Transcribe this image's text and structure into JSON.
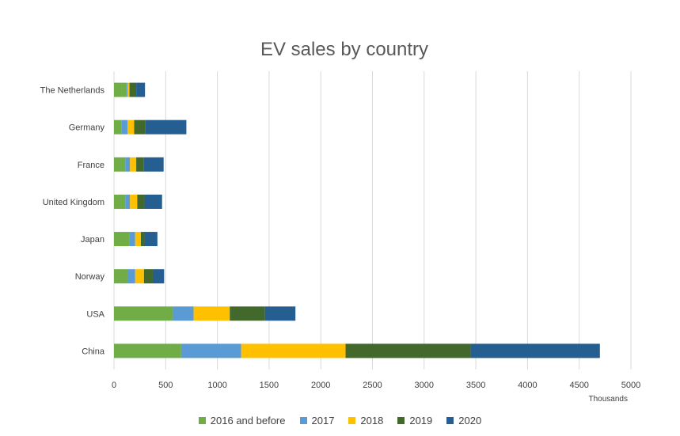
{
  "chart_data": {
    "type": "bar",
    "orientation": "horizontal",
    "stacked": true,
    "title": "EV sales by country",
    "xlabel": "",
    "ylabel": "",
    "x_unit_label": "Thousands",
    "xlim": [
      0,
      5000
    ],
    "xticks": [
      0,
      500,
      1000,
      1500,
      2000,
      2500,
      3000,
      3500,
      4000,
      4500,
      5000
    ],
    "grid": true,
    "legend_position": "bottom",
    "categories": [
      "The Netherlands",
      "Germany",
      "France",
      "United Kingdom",
      "Japan",
      "Norway",
      "USA",
      "China"
    ],
    "series": [
      {
        "name": "2016 and before",
        "color": "#70ad47",
        "values": [
          120,
          75,
          110,
          110,
          150,
          130,
          570,
          650
        ]
      },
      {
        "name": "2017",
        "color": "#5b9bd5",
        "values": [
          10,
          55,
          45,
          45,
          55,
          75,
          200,
          580
        ]
      },
      {
        "name": "2018",
        "color": "#ffc000",
        "values": [
          20,
          65,
          60,
          70,
          55,
          85,
          350,
          1010
        ]
      },
      {
        "name": "2019",
        "color": "#43682b",
        "values": [
          65,
          110,
          70,
          70,
          35,
          85,
          340,
          1210
        ]
      },
      {
        "name": "2020",
        "color": "#255e91",
        "values": [
          85,
          395,
          195,
          170,
          125,
          110,
          295,
          1250
        ]
      }
    ]
  }
}
